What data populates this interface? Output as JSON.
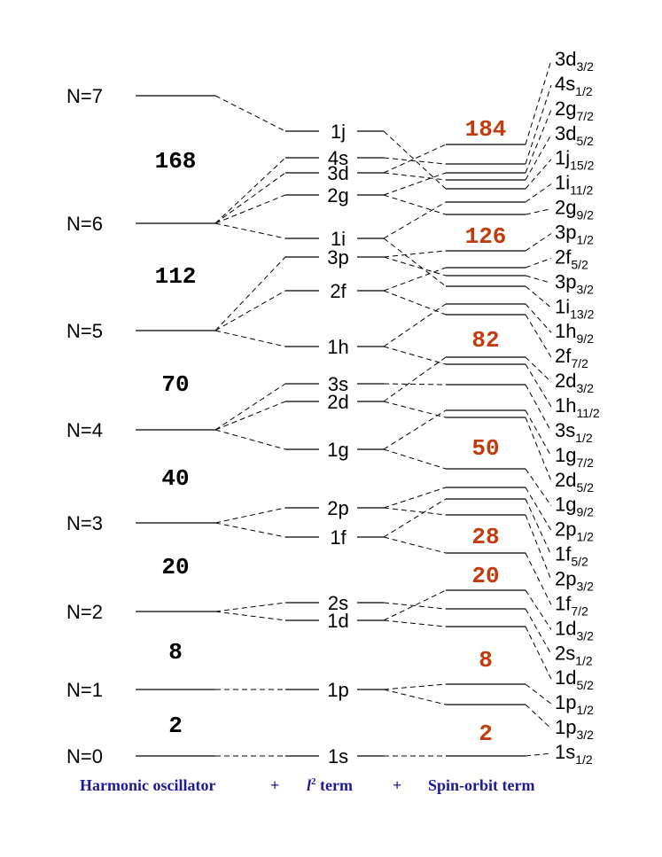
{
  "ho_levels": [
    {
      "label": "N=0",
      "energy": 853
    },
    {
      "label": "N=1",
      "energy": 778
    },
    {
      "label": "N=2",
      "energy": 690
    },
    {
      "label": "N=3",
      "energy": 590
    },
    {
      "label": "N=4",
      "energy": 485
    },
    {
      "label": "N=5",
      "energy": 373
    },
    {
      "label": "N=6",
      "energy": 252
    },
    {
      "label": "N=7",
      "energy": 108
    }
  ],
  "l2_levels": [
    {
      "label": "1s",
      "energy": 853,
      "parent": 0
    },
    {
      "label": "1p",
      "energy": 778,
      "parent": 1
    },
    {
      "label": "1d",
      "energy": 700,
      "parent": 2
    },
    {
      "label": "2s",
      "energy": 680,
      "parent": 2
    },
    {
      "label": "1f",
      "energy": 606,
      "parent": 3
    },
    {
      "label": "2p",
      "energy": 573,
      "parent": 3
    },
    {
      "label": "1g",
      "energy": 507,
      "parent": 4
    },
    {
      "label": "2d",
      "energy": 453,
      "parent": 4
    },
    {
      "label": "3s",
      "energy": 433,
      "parent": 4
    },
    {
      "label": "1h",
      "energy": 391,
      "parent": 5
    },
    {
      "label": "2f",
      "energy": 328,
      "parent": 5
    },
    {
      "label": "3p",
      "energy": 290,
      "parent": 5
    },
    {
      "label": "1i",
      "energy": 269,
      "parent": 6
    },
    {
      "label": "2g",
      "energy": 220,
      "parent": 6
    },
    {
      "label": "3d",
      "energy": 195,
      "parent": 6
    },
    {
      "label": "4s",
      "energy": 178,
      "parent": 6
    },
    {
      "label": "1j",
      "energy": 148,
      "parent": 7
    }
  ],
  "so_levels": [
    {
      "name": "1s",
      "j": "1/2",
      "energy": 853,
      "parent": "1s"
    },
    {
      "name": "1p",
      "j": "3/2",
      "energy": 795,
      "parent": "1p"
    },
    {
      "name": "1p",
      "j": "1/2",
      "energy": 772,
      "parent": "1p"
    },
    {
      "name": "1d",
      "j": "5/2",
      "energy": 707,
      "parent": "1d"
    },
    {
      "name": "2s",
      "j": "1/2",
      "energy": 687,
      "parent": "2s"
    },
    {
      "name": "1d",
      "j": "3/2",
      "energy": 666,
      "parent": "1d"
    },
    {
      "name": "1f",
      "j": "7/2",
      "energy": 624,
      "parent": "1f"
    },
    {
      "name": "2p",
      "j": "3/2",
      "energy": 581,
      "parent": "2p"
    },
    {
      "name": "1f",
      "j": "5/2",
      "energy": 563,
      "parent": "1f"
    },
    {
      "name": "2p",
      "j": "1/2",
      "energy": 550,
      "parent": "2p"
    },
    {
      "name": "1g",
      "j": "9/2",
      "energy": 529,
      "parent": "1g"
    },
    {
      "name": "2d",
      "j": "5/2",
      "energy": 471,
      "parent": "2d"
    },
    {
      "name": "1g",
      "j": "7/2",
      "energy": 463,
      "parent": "1g"
    },
    {
      "name": "3s",
      "j": "1/2",
      "energy": 434,
      "parent": "3s"
    },
    {
      "name": "1h",
      "j": "11/2",
      "energy": 411,
      "parent": "1h"
    },
    {
      "name": "2d",
      "j": "3/2",
      "energy": 403,
      "parent": "2d"
    },
    {
      "name": "2f",
      "j": "7/2",
      "energy": 355,
      "parent": "2f"
    },
    {
      "name": "1h",
      "j": "9/2",
      "energy": 343,
      "parent": "1h"
    },
    {
      "name": "1i",
      "j": "13/2",
      "energy": 323,
      "parent": "1i"
    },
    {
      "name": "3p",
      "j": "3/2",
      "energy": 311,
      "parent": "3p"
    },
    {
      "name": "2f",
      "j": "5/2",
      "energy": 302,
      "parent": "2f"
    },
    {
      "name": "3p",
      "j": "1/2",
      "energy": 283,
      "parent": "3p"
    },
    {
      "name": "2g",
      "j": "9/2",
      "energy": 242,
      "parent": "2g"
    },
    {
      "name": "1i",
      "j": "11/2",
      "energy": 228,
      "parent": "1i"
    },
    {
      "name": "1j",
      "j": "15/2",
      "energy": 213,
      "parent": "1j"
    },
    {
      "name": "3d",
      "j": "5/2",
      "energy": 203,
      "parent": "3d"
    },
    {
      "name": "2g",
      "j": "7/2",
      "energy": 195,
      "parent": "2g"
    },
    {
      "name": "4s",
      "j": "1/2",
      "energy": 185,
      "parent": "4s"
    },
    {
      "name": "3d",
      "j": "3/2",
      "energy": 163,
      "parent": "3d"
    }
  ],
  "magic_numbers_left": [
    {
      "text": "2",
      "energy": 817
    },
    {
      "text": "8",
      "energy": 734
    },
    {
      "text": "20",
      "energy": 638
    },
    {
      "text": "40",
      "energy": 538
    },
    {
      "text": "70",
      "energy": 432
    },
    {
      "text": "112",
      "energy": 310
    },
    {
      "text": "168",
      "energy": 180
    }
  ],
  "magic_numbers_right": [
    {
      "text": "2",
      "energy": 826
    },
    {
      "text": "8",
      "energy": 743
    },
    {
      "text": "20",
      "energy": 648
    },
    {
      "text": "28",
      "energy": 604
    },
    {
      "text": "50",
      "energy": 504
    },
    {
      "text": "82",
      "energy": 382
    },
    {
      "text": "126",
      "energy": 265
    },
    {
      "text": "184",
      "energy": 144
    }
  ],
  "colors": {
    "line": "#000000",
    "magic_left": "#000000",
    "magic_right": "#c23b0c",
    "footer": "#1a1a9a"
  },
  "footer": {
    "ho": "Harmonic oscillator",
    "plus1": "+",
    "l2_symbol": "l",
    "l2_exp": "2",
    "l2_rest": " term",
    "plus2": "+",
    "so": "Spin-orbit term"
  }
}
